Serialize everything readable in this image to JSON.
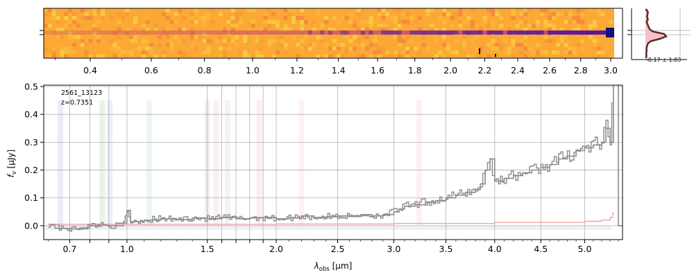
{
  "chart_data": [
    {
      "type": "heatmap",
      "panel": "2d-spectrum",
      "x_ticks": [
        0.4,
        0.6,
        0.8,
        1.0,
        1.2,
        1.4,
        1.6,
        1.8,
        2.0,
        2.2,
        2.4,
        2.6,
        2.8,
        3.0
      ],
      "x_tick_labels": [
        "0.4",
        "0.6",
        "0.8",
        "1.0",
        "1.2",
        "1.4",
        "1.6",
        "1.8",
        "2.0",
        "2.2",
        "2.4",
        "2.6",
        "2.8",
        "3.0"
      ],
      "xlim": [
        0.27,
        3.08
      ],
      "colormap": "plasma",
      "background_color": "#fca835",
      "trace_color": "#c0407a",
      "trace_strong_color": "#5a12a0"
    },
    {
      "type": "line",
      "panel": "profile",
      "annotation": "-0.17 ± 1.03",
      "fill_color": "#f4c2c8",
      "line_color": "#5a2a2a",
      "profile_values": [
        0.05,
        0.12,
        0.1,
        0.08,
        0.12,
        0.06,
        0.1,
        0.15,
        0.2,
        0.35,
        0.9,
        1.0,
        0.7,
        0.25,
        0.12,
        0.08,
        0.05,
        0.06,
        0.04,
        0.05,
        0.03
      ]
    },
    {
      "type": "line",
      "panel": "1d-spectrum",
      "title": "",
      "label_id": "2561_13123",
      "label_z": "z=0.7351",
      "xlabel": "λ_obs [μm]",
      "xlabel_main": "λ",
      "xlabel_sub": "obs",
      "xlabel_unit": " [μm]",
      "ylabel": "f_ν [μJy]",
      "ylabel_main": "f",
      "ylabel_sub": "ν",
      "ylabel_unit": " [μJy]",
      "xlim": [
        0.58,
        5.45
      ],
      "ylim": [
        -0.05,
        0.505
      ],
      "x_ticks": [
        0.7,
        0.8,
        0.9,
        1.0,
        1.5,
        1.6,
        1.7,
        1.8,
        1.9,
        2.0,
        2.5,
        3.0,
        3.5,
        4.0,
        4.5,
        5.0
      ],
      "x_tick_labels": [
        "0.7",
        "",
        "",
        "1.0",
        "1.5",
        "",
        "",
        "",
        "",
        "2.0",
        "2.5",
        "3.0",
        "3.5",
        "4.0",
        "4.5",
        "5.0"
      ],
      "y_ticks": [
        0.0,
        0.1,
        0.2,
        0.3,
        0.4,
        0.5
      ],
      "y_tick_labels": [
        "0.0",
        "0.1",
        "0.2",
        "0.3",
        "0.4",
        "0.5"
      ],
      "grid": true,
      "line_bands": [
        {
          "x": 0.656,
          "color": "#8f8fd9"
        },
        {
          "x": 0.865,
          "color": "#7fbf7f"
        },
        {
          "x": 0.905,
          "color": "#8fb0e0"
        },
        {
          "x": 1.13,
          "color": "#9fd49f"
        },
        {
          "x": 1.5,
          "color": "#d9a0a0"
        },
        {
          "x": 1.56,
          "color": "#e6a0a0"
        },
        {
          "x": 1.64,
          "color": "#d9b0b0"
        },
        {
          "x": 1.87,
          "color": "#f2a0a0"
        },
        {
          "x": 2.2,
          "color": "#f2b0b0"
        },
        {
          "x": 3.24,
          "color": "#f2b0b8"
        }
      ],
      "series": [
        {
          "role": "flux",
          "color": "#8a8a8a",
          "x": [
            0.6,
            0.65,
            0.7,
            0.75,
            0.8,
            0.85,
            0.9,
            0.95,
            0.98,
            1.0,
            1.02,
            1.1,
            1.2,
            1.3,
            1.4,
            1.5,
            1.6,
            1.7,
            1.8,
            1.9,
            2.0,
            2.1,
            2.2,
            2.3,
            2.4,
            2.5,
            2.6,
            2.7,
            2.8,
            2.9,
            3.0,
            3.05,
            3.1,
            3.2,
            3.3,
            3.4,
            3.5,
            3.6,
            3.7,
            3.8,
            3.85,
            3.9,
            3.95,
            4.0,
            4.1,
            4.2,
            4.3,
            4.4,
            4.5,
            4.6,
            4.7,
            4.8,
            4.9,
            5.0,
            5.1,
            5.2,
            5.25,
            5.3,
            5.34,
            5.35,
            5.4,
            5.45
          ],
          "y": [
            0.005,
            -0.01,
            -0.012,
            -0.008,
            0.0,
            0.005,
            0.0,
            0.0,
            0.01,
            0.055,
            0.015,
            0.02,
            0.025,
            0.022,
            0.028,
            0.025,
            0.03,
            0.025,
            0.028,
            0.03,
            0.025,
            0.028,
            0.035,
            0.03,
            0.032,
            0.035,
            0.033,
            0.04,
            0.035,
            0.04,
            0.05,
            0.06,
            0.07,
            0.075,
            0.085,
            0.09,
            0.1,
            0.11,
            0.12,
            0.13,
            0.15,
            0.2,
            0.24,
            0.16,
            0.17,
            0.18,
            0.19,
            0.2,
            0.21,
            0.22,
            0.24,
            0.25,
            0.27,
            0.28,
            0.29,
            0.3,
            0.35,
            0.3,
            0.52,
            0.52,
            0.0,
            0.0
          ]
        },
        {
          "role": "error",
          "color": "#f2a3a3",
          "x": [
            0.6,
            1.0,
            2.0,
            3.0,
            4.0,
            5.0,
            5.2,
            5.3,
            5.33,
            5.35
          ],
          "y": [
            0.005,
            0.005,
            0.006,
            0.008,
            0.012,
            0.016,
            0.02,
            0.03,
            0.045,
            0.045
          ]
        }
      ]
    }
  ]
}
